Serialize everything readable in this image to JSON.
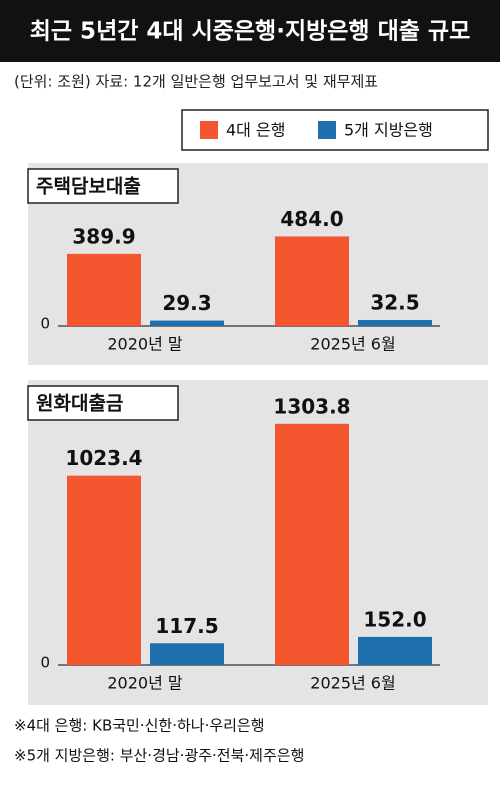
{
  "title": "최근 5년간 4대 시중은행·지방은행 대출 규모",
  "subtitle": "(단위: 조원)  자료: 12개 일반은행 업무보고서 및 재무제표",
  "notes": [
    "※4대 은행: KB국민·신한·하나·우리은행",
    "※5개 지방은행: 부산·경남·광주·전북·제주은행"
  ],
  "chart_data": [
    {
      "type": "bar",
      "title": "주택담보대출",
      "categories": [
        "2020년 말",
        "2025년 6월"
      ],
      "series": [
        {
          "name": "4대 은행",
          "color": "#f4572f",
          "values": [
            389.9,
            484.0
          ],
          "value_labels": [
            "389.9",
            "484.0"
          ]
        },
        {
          "name": "5개 지방은행",
          "color": "#1f6fad",
          "values": [
            29.3,
            32.5
          ],
          "value_labels": [
            "29.3",
            "32.5"
          ]
        }
      ],
      "ylim": [
        0,
        1400
      ],
      "yticks": [
        0
      ]
    },
    {
      "type": "bar",
      "title": "원화대출금",
      "categories": [
        "2020년 말",
        "2025년 6월"
      ],
      "series": [
        {
          "name": "4대 은행",
          "color": "#f4572f",
          "values": [
            1023.4,
            1303.8
          ],
          "value_labels": [
            "1023.4",
            "1303.8"
          ]
        },
        {
          "name": "5개 지방은행",
          "color": "#1f6fad",
          "values": [
            117.5,
            152.0
          ],
          "value_labels": [
            "117.5",
            "152.0"
          ]
        }
      ],
      "ylim": [
        0,
        1400
      ],
      "yticks": [
        0
      ]
    }
  ]
}
